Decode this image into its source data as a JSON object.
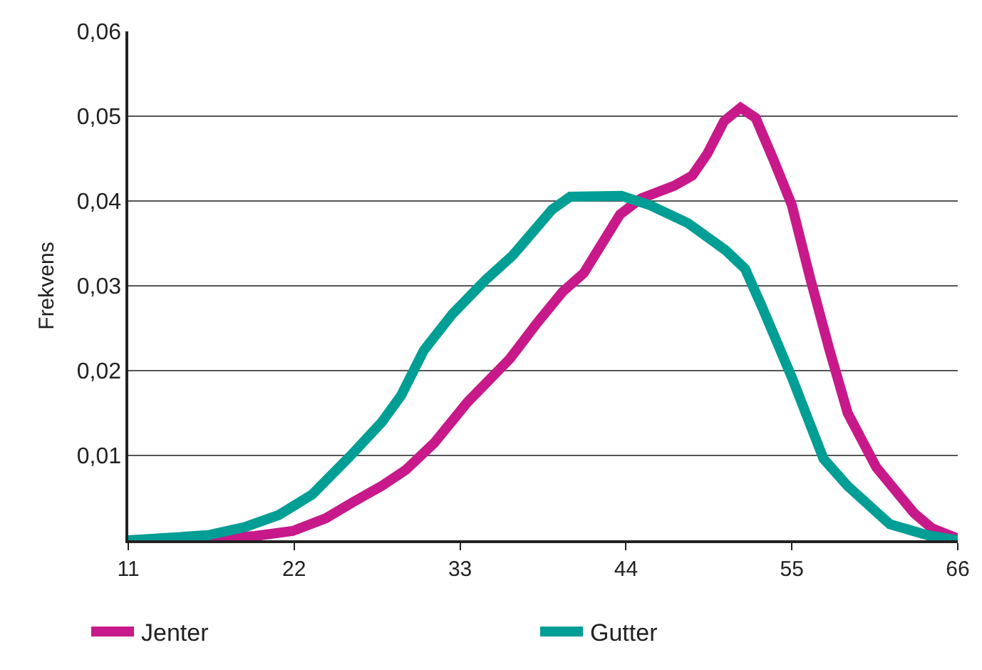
{
  "chart_data": {
    "type": "line",
    "ylabel": "Frekvens",
    "xlim": [
      11,
      66
    ],
    "xticks": [
      11,
      22,
      33,
      44,
      55,
      66
    ],
    "ylim": [
      0,
      0.06
    ],
    "yticks": [
      {
        "value": 0.01,
        "label": "0,01"
      },
      {
        "value": 0.02,
        "label": "0,02"
      },
      {
        "value": 0.03,
        "label": "0,03"
      },
      {
        "value": 0.04,
        "label": "0,04"
      },
      {
        "value": 0.05,
        "label": "0,05"
      },
      {
        "value": 0.06,
        "label": "0,06"
      }
    ],
    "grid": "y",
    "legend": "bottom",
    "line_style": "solid",
    "series": [
      {
        "name": "Jenter",
        "color": "#c8198a",
        "x": [
          11,
          16.3,
          19.4,
          21.9,
          24.1,
          26,
          27.8,
          29.4,
          31.3,
          33.5,
          36.3,
          38.1,
          39.8,
          41.2,
          43.6,
          45,
          47.2,
          48.4,
          49.4,
          50.5,
          51.6,
          52.6,
          53.8,
          55,
          56.2,
          57.5,
          58.7,
          60.6,
          63.1,
          64.3,
          66
        ],
        "values": [
          0,
          0.0002,
          0.0005,
          0.0011,
          0.0026,
          0.0046,
          0.0064,
          0.0083,
          0.0115,
          0.0163,
          0.0214,
          0.0256,
          0.0293,
          0.0315,
          0.0384,
          0.0403,
          0.0418,
          0.043,
          0.0456,
          0.0494,
          0.051,
          0.0498,
          0.0448,
          0.0395,
          0.031,
          0.0224,
          0.015,
          0.0086,
          0.0032,
          0.0014,
          0.0002
        ]
      },
      {
        "name": "Gutter",
        "color": "#009e94",
        "x": [
          11,
          16.3,
          18.8,
          21,
          23.2,
          25.7,
          27.8,
          29.1,
          30.6,
          32.5,
          34.7,
          36.5,
          39.1,
          40.3,
          43.7,
          45.6,
          48.1,
          50.6,
          51.9,
          53.1,
          55,
          57.1,
          58.7,
          61.5,
          64,
          66
        ],
        "values": [
          0,
          0.0006,
          0.0016,
          0.003,
          0.0054,
          0.0099,
          0.0139,
          0.0171,
          0.0224,
          0.0267,
          0.0307,
          0.0336,
          0.039,
          0.0405,
          0.0406,
          0.0395,
          0.0374,
          0.0342,
          0.032,
          0.0272,
          0.0192,
          0.0096,
          0.0064,
          0.0019,
          0.0006,
          0
        ]
      }
    ]
  }
}
